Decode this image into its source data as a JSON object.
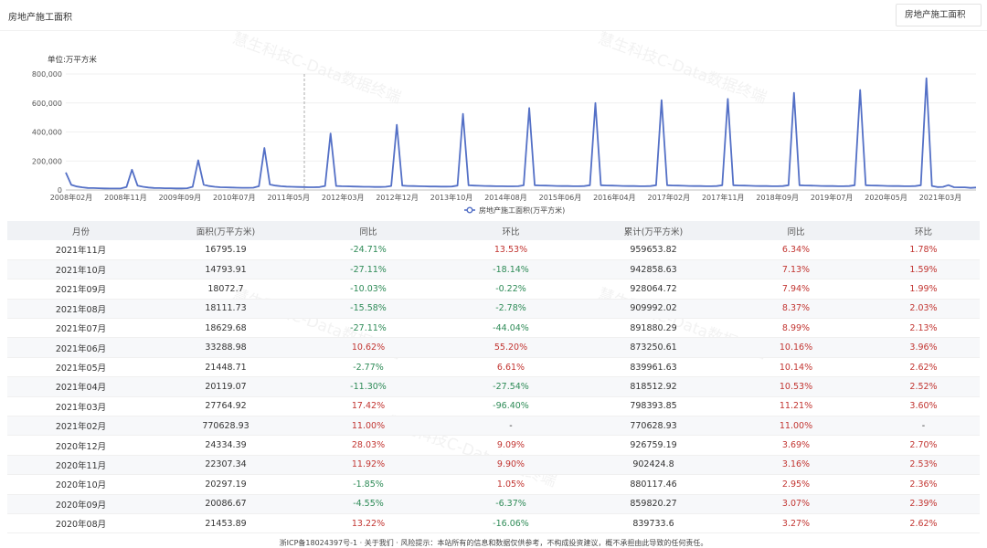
{
  "header": {
    "title": "房地产施工面积",
    "select_value": "房地产施工面积"
  },
  "watermark": "慧生科技C-Data数据终端",
  "chart_data": {
    "type": "line",
    "unit_label": "单位:万平方米",
    "legend": "房地产施工面积(万平方米)",
    "line_color": "#5470c6",
    "ylim": [
      0,
      800000
    ],
    "y_ticks": [
      "800,000",
      "600,000",
      "400,000",
      "200,000",
      "0"
    ],
    "x_ticks": [
      "2008年02月",
      "2008年11月",
      "2009年09月",
      "2010年07月",
      "2011年05月",
      "2012年03月",
      "2012年12月",
      "2013年10月",
      "2014年08月",
      "2015年06月",
      "2016年04月",
      "2017年02月",
      "2017年11月",
      "2018年09月",
      "2019年07月",
      "2020年05月",
      "2021年03月"
    ],
    "series": [
      {
        "values": [
          [
            0,
            120000
          ],
          [
            1,
            35000
          ],
          [
            2,
            24000
          ],
          [
            3,
            18000
          ],
          [
            4,
            14000
          ],
          [
            5,
            13000
          ],
          [
            6,
            12000
          ],
          [
            7,
            11000
          ],
          [
            8,
            10000
          ],
          [
            9,
            10000
          ],
          [
            10,
            11000
          ],
          [
            11,
            20000
          ],
          [
            12,
            140000
          ],
          [
            13,
            30000
          ],
          [
            14,
            22000
          ],
          [
            15,
            17000
          ],
          [
            16,
            14000
          ],
          [
            17,
            13000
          ],
          [
            18,
            12000
          ],
          [
            19,
            12000
          ],
          [
            20,
            11000
          ],
          [
            21,
            11000
          ],
          [
            22,
            12000
          ],
          [
            23,
            22000
          ],
          [
            24,
            205000
          ],
          [
            25,
            36000
          ],
          [
            26,
            27000
          ],
          [
            27,
            22000
          ],
          [
            28,
            19000
          ],
          [
            29,
            18000
          ],
          [
            30,
            17000
          ],
          [
            31,
            16000
          ],
          [
            32,
            15000
          ],
          [
            33,
            15000
          ],
          [
            34,
            16000
          ],
          [
            35,
            26000
          ],
          [
            36,
            290000
          ],
          [
            37,
            38000
          ],
          [
            38,
            30000
          ],
          [
            39,
            26000
          ],
          [
            40,
            23000
          ],
          [
            41,
            22000
          ],
          [
            42,
            21000
          ],
          [
            43,
            20000
          ],
          [
            44,
            19000
          ],
          [
            45,
            19000
          ],
          [
            46,
            20000
          ],
          [
            47,
            28000
          ],
          [
            48,
            390000
          ],
          [
            49,
            28000
          ],
          [
            50,
            26000
          ],
          [
            51,
            25000
          ],
          [
            52,
            24000
          ],
          [
            53,
            23000
          ],
          [
            54,
            22000
          ],
          [
            55,
            22000
          ],
          [
            56,
            21000
          ],
          [
            57,
            21000
          ],
          [
            58,
            22000
          ],
          [
            59,
            28000
          ],
          [
            60,
            450000
          ],
          [
            61,
            30000
          ],
          [
            62,
            28000
          ],
          [
            63,
            27000
          ],
          [
            64,
            26000
          ],
          [
            65,
            25000
          ],
          [
            66,
            24000
          ],
          [
            67,
            24000
          ],
          [
            68,
            23000
          ],
          [
            69,
            23000
          ],
          [
            70,
            24000
          ],
          [
            71,
            30000
          ],
          [
            72,
            525000
          ],
          [
            73,
            32000
          ],
          [
            74,
            30000
          ],
          [
            75,
            29000
          ],
          [
            76,
            28000
          ],
          [
            77,
            27000
          ],
          [
            78,
            26000
          ],
          [
            79,
            26000
          ],
          [
            80,
            25000
          ],
          [
            81,
            25000
          ],
          [
            82,
            26000
          ],
          [
            83,
            32000
          ],
          [
            84,
            565000
          ],
          [
            85,
            33000
          ],
          [
            86,
            31000
          ],
          [
            87,
            30000
          ],
          [
            88,
            29000
          ],
          [
            89,
            28000
          ],
          [
            90,
            27000
          ],
          [
            91,
            27000
          ],
          [
            92,
            26000
          ],
          [
            93,
            26000
          ],
          [
            94,
            27000
          ],
          [
            95,
            33000
          ],
          [
            96,
            600000
          ],
          [
            97,
            33000
          ],
          [
            98,
            31000
          ],
          [
            99,
            30000
          ],
          [
            100,
            29000
          ],
          [
            101,
            28000
          ],
          [
            102,
            27000
          ],
          [
            103,
            27000
          ],
          [
            104,
            26000
          ],
          [
            105,
            26000
          ],
          [
            106,
            27000
          ],
          [
            107,
            33000
          ],
          [
            108,
            620000
          ],
          [
            109,
            33000
          ],
          [
            110,
            31000
          ],
          [
            111,
            30000
          ],
          [
            112,
            29000
          ],
          [
            113,
            28000
          ],
          [
            114,
            27000
          ],
          [
            115,
            27000
          ],
          [
            116,
            26000
          ],
          [
            117,
            26000
          ],
          [
            118,
            27000
          ],
          [
            119,
            33000
          ],
          [
            120,
            628000
          ],
          [
            121,
            33000
          ],
          [
            122,
            31000
          ],
          [
            123,
            30000
          ],
          [
            124,
            29000
          ],
          [
            125,
            28000
          ],
          [
            126,
            27000
          ],
          [
            127,
            27000
          ],
          [
            128,
            26000
          ],
          [
            129,
            26000
          ],
          [
            130,
            27000
          ],
          [
            131,
            33000
          ],
          [
            132,
            670000
          ],
          [
            133,
            33000
          ],
          [
            134,
            31000
          ],
          [
            135,
            30000
          ],
          [
            136,
            29000
          ],
          [
            137,
            28000
          ],
          [
            138,
            27000
          ],
          [
            139,
            27000
          ],
          [
            140,
            26000
          ],
          [
            141,
            26000
          ],
          [
            142,
            27000
          ],
          [
            143,
            33000
          ],
          [
            144,
            690000
          ],
          [
            145,
            33000
          ],
          [
            146,
            31000
          ],
          [
            147,
            30000
          ],
          [
            148,
            29000
          ],
          [
            149,
            28000
          ],
          [
            150,
            27000
          ],
          [
            151,
            27000
          ],
          [
            152,
            26000
          ],
          [
            153,
            26000
          ],
          [
            154,
            27000
          ],
          [
            155,
            33000
          ],
          [
            156,
            770628.93
          ],
          [
            157,
            27764.92
          ],
          [
            158,
            20119.07
          ],
          [
            159,
            21448.71
          ],
          [
            160,
            33288.98
          ],
          [
            161,
            18629.68
          ],
          [
            162,
            18111.73
          ],
          [
            163,
            18072.7
          ],
          [
            164,
            14793.91
          ],
          [
            165,
            16795.19
          ]
        ]
      }
    ]
  },
  "table": {
    "headers": [
      "月份",
      "面积(万平方米)",
      "同比",
      "环比",
      "累计(万平方米)",
      "同比",
      "环比"
    ],
    "rows": [
      [
        "2021年11月",
        "16795.19",
        "-24.71%",
        "13.53%",
        "959653.82",
        "6.34%",
        "1.78%"
      ],
      [
        "2021年10月",
        "14793.91",
        "-27.11%",
        "-18.14%",
        "942858.63",
        "7.13%",
        "1.59%"
      ],
      [
        "2021年09月",
        "18072.7",
        "-10.03%",
        "-0.22%",
        "928064.72",
        "7.94%",
        "1.99%"
      ],
      [
        "2021年08月",
        "18111.73",
        "-15.58%",
        "-2.78%",
        "909992.02",
        "8.37%",
        "2.03%"
      ],
      [
        "2021年07月",
        "18629.68",
        "-27.11%",
        "-44.04%",
        "891880.29",
        "8.99%",
        "2.13%"
      ],
      [
        "2021年06月",
        "33288.98",
        "10.62%",
        "55.20%",
        "873250.61",
        "10.16%",
        "3.96%"
      ],
      [
        "2021年05月",
        "21448.71",
        "-2.77%",
        "6.61%",
        "839961.63",
        "10.14%",
        "2.62%"
      ],
      [
        "2021年04月",
        "20119.07",
        "-11.30%",
        "-27.54%",
        "818512.92",
        "10.53%",
        "2.52%"
      ],
      [
        "2021年03月",
        "27764.92",
        "17.42%",
        "-96.40%",
        "798393.85",
        "11.21%",
        "3.60%"
      ],
      [
        "2021年02月",
        "770628.93",
        "11.00%",
        "-",
        "770628.93",
        "11.00%",
        "-"
      ],
      [
        "2020年12月",
        "24334.39",
        "28.03%",
        "9.09%",
        "926759.19",
        "3.69%",
        "2.70%"
      ],
      [
        "2020年11月",
        "22307.34",
        "11.92%",
        "9.90%",
        "902424.8",
        "3.16%",
        "2.53%"
      ],
      [
        "2020年10月",
        "20297.19",
        "-1.85%",
        "1.05%",
        "880117.46",
        "2.95%",
        "2.36%"
      ],
      [
        "2020年09月",
        "20086.67",
        "-4.55%",
        "-6.37%",
        "859820.27",
        "3.07%",
        "2.39%"
      ],
      [
        "2020年08月",
        "21453.89",
        "13.22%",
        "-16.06%",
        "839733.6",
        "3.27%",
        "2.62%"
      ]
    ]
  },
  "footer": {
    "text": "浙ICP备18024397号-1 · 关于我们 · 风险提示：本站所有的信息和数据仅供参考，不构成投资建议，概不承担由此导致的任何责任。"
  }
}
